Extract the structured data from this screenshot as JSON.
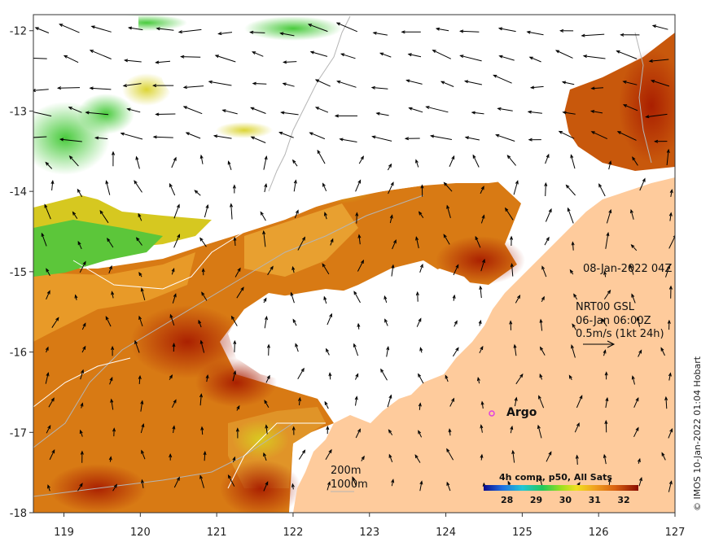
{
  "map": {
    "lon_range": [
      118.6,
      127.0
    ],
    "lat_range": [
      -18.0,
      -11.8
    ],
    "lon_ticks": [
      119,
      120,
      121,
      122,
      123,
      124,
      125,
      126,
      127
    ],
    "lat_ticks": [
      -12,
      -13,
      -14,
      -15,
      -16,
      -17,
      -18
    ],
    "lon_tick_labels": [
      "119",
      "120",
      "121",
      "122",
      "123",
      "124",
      "125",
      "126",
      "127"
    ],
    "lat_tick_labels": [
      "-12",
      "-13",
      "-14",
      "-15",
      "-16",
      "-17",
      "-18"
    ]
  },
  "annotations": {
    "timestamp": "08-Jan-2022 04Z",
    "current_source": "NRT00 GSL",
    "current_time": "06-Jan 06:00Z",
    "current_scale": "0.5m/s (1kt 24h)",
    "argo_label": "Argo",
    "isobath_200": "200m",
    "isobath_1000": "1000m",
    "credit": "© IMOS 10-Jan-2022 01:04 Hobart"
  },
  "colorbar": {
    "title": "4h comp, p50, All Sats",
    "ticks": [
      "28",
      "29",
      "30",
      "31",
      "32"
    ],
    "range": [
      27.2,
      32.5
    ],
    "tick_values": [
      28,
      29,
      30,
      31,
      32
    ]
  },
  "colors": {
    "land": "#fecb9c",
    "cloud": "#ffffff",
    "argo": "#e040e0",
    "isobath": "#b5b5b5"
  }
}
